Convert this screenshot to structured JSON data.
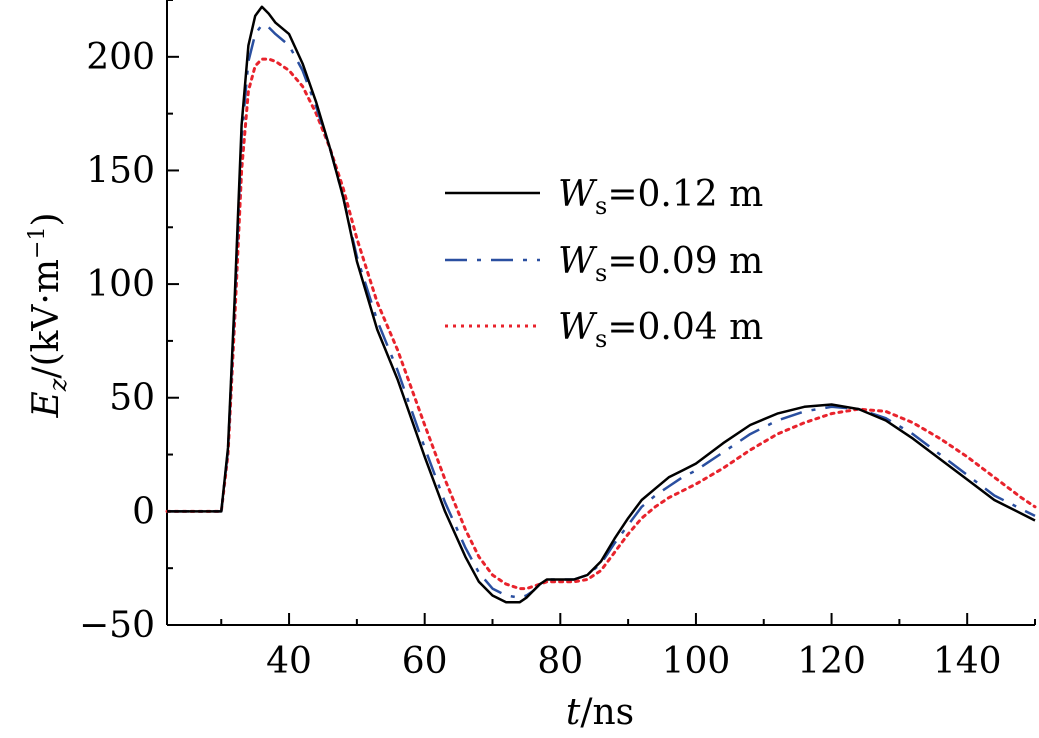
{
  "chart_data": {
    "type": "line",
    "title": "",
    "xlabel": {
      "var": "t",
      "unit": "/ns"
    },
    "ylabel": {
      "var": "E",
      "sub": "z",
      "unit_prefix": "/(kV·m",
      "unit_sup": "−1",
      "unit_suffix": ")"
    },
    "xlim": [
      22,
      150
    ],
    "ylim": [
      -50,
      225
    ],
    "xticks": [
      40,
      60,
      80,
      100,
      120,
      140
    ],
    "xtick_labels": [
      "40",
      "60",
      "80",
      "100",
      "120",
      "140"
    ],
    "yticks": [
      -50,
      0,
      50,
      100,
      150,
      200
    ],
    "ytick_labels": [
      "−50",
      "0",
      "50",
      "100",
      "150",
      "200"
    ],
    "grid": false,
    "legend_position": "right-center",
    "series": [
      {
        "name": "W_s=0.12 m",
        "legend_prefix": "W",
        "legend_sub": "s",
        "legend_suffix": "=0.12 m",
        "color": "#000000",
        "style": "solid",
        "x": [
          22,
          28,
          30,
          31,
          32,
          33,
          34,
          35,
          36,
          37,
          38,
          40,
          42,
          44,
          46,
          48,
          50,
          53,
          56,
          60,
          63,
          66,
          68,
          70,
          72,
          74,
          75,
          76,
          77,
          78,
          80,
          82,
          84,
          86,
          88,
          90,
          92,
          94,
          96,
          98,
          100,
          104,
          108,
          112,
          116,
          120,
          124,
          128,
          132,
          136,
          140,
          144,
          148,
          150
        ],
        "y": [
          0,
          0,
          0,
          28,
          95,
          170,
          205,
          218,
          222,
          219,
          215,
          210,
          197,
          180,
          160,
          138,
          110,
          80,
          58,
          24,
          0,
          -20,
          -31,
          -37,
          -40,
          -40,
          -38,
          -35,
          -32,
          -30,
          -30,
          -30,
          -28,
          -22,
          -12,
          -3,
          5,
          10,
          15,
          18,
          21,
          30,
          38,
          43,
          46,
          47,
          45,
          40,
          32,
          23,
          14,
          5,
          -1,
          -4
        ]
      },
      {
        "name": "W_s=0.09 m",
        "legend_prefix": "W",
        "legend_sub": "s",
        "legend_suffix": "=0.09 m",
        "color": "#2a4fa0",
        "style": "dashdot",
        "x": [
          22,
          28,
          30,
          31,
          32,
          33,
          34,
          35,
          36,
          37,
          38,
          40,
          42,
          44,
          46,
          48,
          50,
          53,
          56,
          60,
          63,
          66,
          68,
          70,
          72,
          74,
          75,
          76,
          77,
          78,
          80,
          82,
          84,
          86,
          88,
          90,
          92,
          94,
          96,
          98,
          100,
          104,
          108,
          112,
          116,
          120,
          124,
          128,
          132,
          136,
          140,
          144,
          148,
          150
        ],
        "y": [
          0,
          0,
          0,
          27,
          92,
          165,
          198,
          210,
          214,
          213,
          210,
          205,
          194,
          178,
          160,
          138,
          112,
          84,
          62,
          28,
          4,
          -16,
          -27,
          -34,
          -37,
          -38,
          -37,
          -35,
          -32,
          -30,
          -30,
          -30,
          -28,
          -23,
          -14,
          -6,
          2,
          7,
          11,
          15,
          18,
          26,
          34,
          40,
          44,
          46,
          45,
          41,
          34,
          25,
          16,
          7,
          1,
          -2
        ]
      },
      {
        "name": "W_s=0.04 m",
        "legend_prefix": "W",
        "legend_sub": "s",
        "legend_suffix": "=0.04 m",
        "color": "#e8232c",
        "style": "dotted",
        "x": [
          22,
          28,
          30,
          31,
          32,
          33,
          34,
          35,
          36,
          37,
          38,
          40,
          42,
          44,
          46,
          48,
          50,
          53,
          56,
          60,
          63,
          66,
          68,
          70,
          72,
          74,
          75,
          76,
          77,
          78,
          80,
          82,
          84,
          86,
          88,
          90,
          92,
          94,
          96,
          98,
          100,
          104,
          108,
          112,
          116,
          120,
          124,
          128,
          132,
          136,
          140,
          144,
          148,
          150
        ],
        "y": [
          0,
          0,
          0,
          25,
          85,
          150,
          185,
          196,
          199,
          199,
          198,
          194,
          187,
          175,
          160,
          142,
          120,
          92,
          71,
          38,
          14,
          -8,
          -20,
          -28,
          -32,
          -34,
          -34,
          -33,
          -32,
          -31,
          -31,
          -31,
          -30,
          -26,
          -18,
          -10,
          -3,
          2,
          6,
          9,
          12,
          19,
          27,
          34,
          39,
          43,
          45,
          44,
          39,
          32,
          24,
          15,
          6,
          2
        ]
      }
    ]
  }
}
